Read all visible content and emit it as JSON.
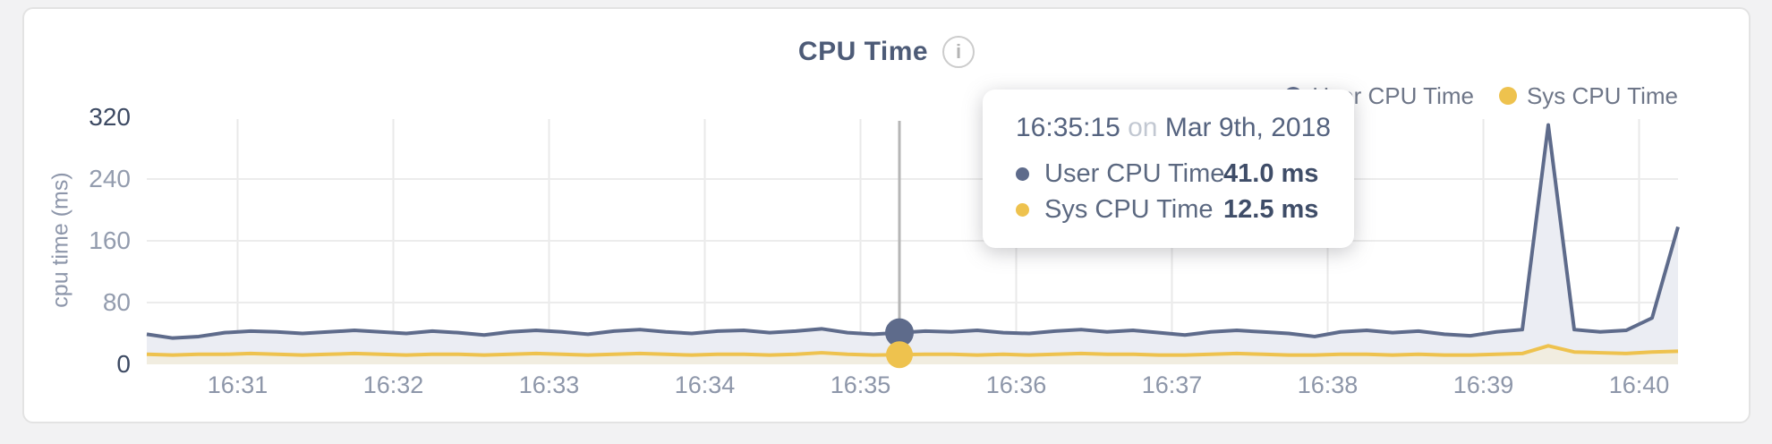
{
  "page": {
    "background": "#f2f2f3"
  },
  "card": {
    "background": "#ffffff",
    "border_color": "#e3e3e3"
  },
  "header": {
    "title": "CPU Time",
    "info_icon": "i"
  },
  "legend": {
    "items": [
      {
        "label": "User CPU Time",
        "color": "#5e6b8b"
      },
      {
        "label": "Sys CPU Time",
        "color": "#eec24e"
      }
    ]
  },
  "tooltip": {
    "time": "16:35:15",
    "connector": "on",
    "date": "Mar 9th, 2018",
    "rows": [
      {
        "label": "User CPU Time",
        "value": "41.0 ms",
        "color": "#5e6b8b"
      },
      {
        "label": "Sys CPU Time",
        "value": "12.5 ms",
        "color": "#eec24e"
      }
    ]
  },
  "chart_data": {
    "type": "area",
    "title": "CPU Time",
    "xlabel": "",
    "ylabel": "cpu time (ms)",
    "ylim": [
      0,
      320
    ],
    "yticks": [
      0,
      80,
      160,
      240,
      320
    ],
    "grid": true,
    "legend_position": "top-right",
    "x_start_time": "16:30:25",
    "x_end_time": "16:40:15",
    "x_step_seconds": 10,
    "x_tick_labels": [
      {
        "offset_seconds": 35,
        "label": "16:31"
      },
      {
        "offset_seconds": 95,
        "label": "16:32"
      },
      {
        "offset_seconds": 155,
        "label": "16:33"
      },
      {
        "offset_seconds": 215,
        "label": "16:34"
      },
      {
        "offset_seconds": 275,
        "label": "16:35"
      },
      {
        "offset_seconds": 335,
        "label": "16:36"
      },
      {
        "offset_seconds": 395,
        "label": "16:37"
      },
      {
        "offset_seconds": 455,
        "label": "16:38"
      },
      {
        "offset_seconds": 515,
        "label": "16:39"
      },
      {
        "offset_seconds": 575,
        "label": "16:40"
      }
    ],
    "series": [
      {
        "name": "User CPU Time",
        "unit": "ms",
        "color": "#5e6b8b",
        "fill": "#ebedf3",
        "values": [
          39,
          34,
          36,
          41,
          43,
          42,
          40,
          42,
          44,
          42,
          40,
          43,
          41,
          38,
          42,
          44,
          42,
          39,
          43,
          45,
          42,
          40,
          43,
          44,
          41,
          43,
          46,
          41,
          39,
          41,
          43,
          42,
          44,
          41,
          40,
          43,
          45,
          42,
          44,
          41,
          38,
          42,
          44,
          42,
          40,
          36,
          42,
          44,
          41,
          43,
          39,
          37,
          42,
          45,
          310,
          45,
          42,
          44,
          60,
          178
        ]
      },
      {
        "name": "Sys CPU Time",
        "unit": "ms",
        "color": "#eec24e",
        "fill": "#f1ede0",
        "values": [
          13,
          12,
          13,
          13,
          14,
          13,
          12,
          13,
          14,
          13,
          12,
          13,
          13,
          12,
          13,
          14,
          13,
          12,
          13,
          14,
          13,
          12,
          13,
          13,
          12,
          13,
          15,
          13,
          12,
          12.5,
          13,
          13,
          12,
          13,
          12,
          13,
          14,
          13,
          13,
          12,
          12,
          13,
          14,
          13,
          12,
          12,
          13,
          13,
          12,
          13,
          12,
          12,
          13,
          14,
          24,
          16,
          15,
          14,
          16,
          17
        ]
      }
    ],
    "hover": {
      "index": 29,
      "time": "16:35:15",
      "user_cpu_ms": 41.0,
      "sys_cpu_ms": 12.5,
      "line_color": "#b6b6b6"
    }
  }
}
